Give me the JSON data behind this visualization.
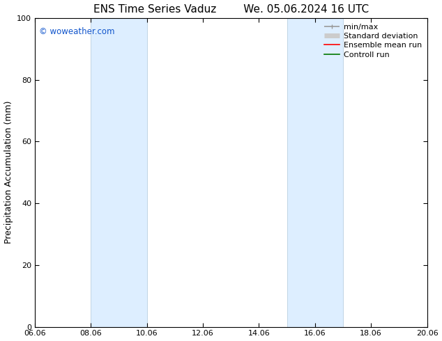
{
  "title_left": "ENS Time Series Vaduz",
  "title_right": "We. 05.06.2024 16 UTC",
  "ylabel": "Precipitation Accumulation (mm)",
  "watermark": "© woweather.com",
  "watermark_color": "#1155cc",
  "ylim": [
    0,
    100
  ],
  "xlim_start": 6.06,
  "xlim_end": 20.06,
  "xticks": [
    6.06,
    8.06,
    10.06,
    12.06,
    14.06,
    16.06,
    18.06,
    20.06
  ],
  "xtick_labels": [
    "06.06",
    "08.06",
    "10.06",
    "12.06",
    "14.06",
    "16.06",
    "18.06",
    "20.06"
  ],
  "yticks": [
    0,
    20,
    40,
    60,
    80,
    100
  ],
  "bg_color": "#ffffff",
  "plot_bg_color": "#ffffff",
  "shaded_regions": [
    {
      "x_start": 8.06,
      "x_end": 10.06
    },
    {
      "x_start": 15.06,
      "x_end": 17.06
    }
  ],
  "shade_color": "#ddeeff",
  "shade_border_color": "#b8cfe0",
  "legend_items": [
    {
      "label": "min/max",
      "color": "#999999",
      "lw": 1.2,
      "style": "minmax"
    },
    {
      "label": "Standard deviation",
      "color": "#cccccc",
      "lw": 5,
      "style": "band"
    },
    {
      "label": "Ensemble mean run",
      "color": "#ff0000",
      "lw": 1.2,
      "style": "line"
    },
    {
      "label": "Controll run",
      "color": "#007700",
      "lw": 1.2,
      "style": "line"
    }
  ],
  "title_fontsize": 11,
  "ylabel_fontsize": 9,
  "tick_fontsize": 8,
  "legend_fontsize": 8
}
